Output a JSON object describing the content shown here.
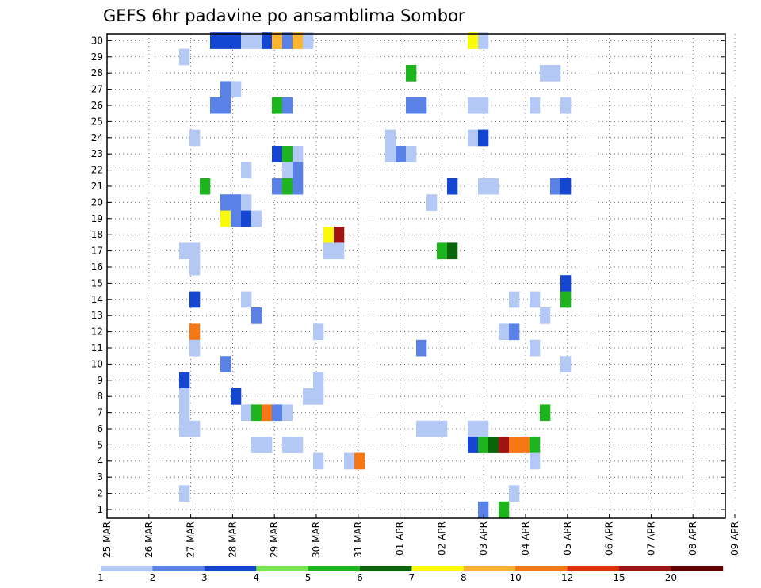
{
  "chart_data": {
    "type": "heatmap",
    "title": "GEFS 6hr padavine po ansamblima Sombor",
    "xlabel": "",
    "ylabel": "",
    "x_ticks": [
      "25 MAR",
      "26 MAR",
      "27 MAR",
      "28 MAR",
      "29 MAR",
      "30 MAR",
      "31 MAR",
      "01 APR",
      "02 APR",
      "03 APR",
      "04 APR",
      "05 APR",
      "06 APR",
      "07 APR",
      "08 APR",
      "09 APR"
    ],
    "y_ticks": [
      "1",
      "2",
      "3",
      "4",
      "5",
      "6",
      "7",
      "8",
      "9",
      "10",
      "11",
      "12",
      "13",
      "14",
      "15",
      "16",
      "17",
      "18",
      "19",
      "20",
      "21",
      "22",
      "23",
      "24",
      "25",
      "26",
      "27",
      "28",
      "29",
      "30"
    ],
    "ylim": [
      1,
      30
    ],
    "x_step_hours": 6,
    "grid": true,
    "colorbar": {
      "labels": [
        "1",
        "2",
        "3",
        "4",
        "5",
        "6",
        "7",
        "8",
        "10",
        "12",
        "15",
        "20"
      ],
      "colors": [
        "#b4c8f5",
        "#5a82e6",
        "#1446d2",
        "#78e650",
        "#1eb41e",
        "#0a640a",
        "#fafa0a",
        "#fab432",
        "#f57814",
        "#dc320a",
        "#a01414",
        "#640000"
      ]
    },
    "cells": [
      [
        10,
        30,
        3
      ],
      [
        11,
        30,
        3
      ],
      [
        12,
        30,
        3
      ],
      [
        13,
        30,
        1
      ],
      [
        14,
        30,
        1
      ],
      [
        15,
        30,
        3
      ],
      [
        16,
        30,
        8
      ],
      [
        17,
        30,
        2
      ],
      [
        18,
        30,
        8
      ],
      [
        19,
        30,
        1
      ],
      [
        35,
        30,
        7
      ],
      [
        36,
        30,
        1
      ],
      [
        7,
        29,
        1
      ],
      [
        29,
        28,
        5
      ],
      [
        42,
        28,
        1
      ],
      [
        43,
        28,
        1
      ],
      [
        11,
        27,
        2
      ],
      [
        12,
        27,
        1
      ],
      [
        10,
        26,
        2
      ],
      [
        11,
        26,
        2
      ],
      [
        16,
        26,
        5
      ],
      [
        17,
        26,
        2
      ],
      [
        29,
        26,
        2
      ],
      [
        30,
        26,
        2
      ],
      [
        35,
        26,
        1
      ],
      [
        36,
        26,
        1
      ],
      [
        41,
        26,
        1
      ],
      [
        44,
        26,
        1
      ],
      [
        8,
        24,
        1
      ],
      [
        27,
        24,
        1
      ],
      [
        35,
        24,
        1
      ],
      [
        36,
        24,
        3
      ],
      [
        16,
        23,
        3
      ],
      [
        17,
        23,
        5
      ],
      [
        18,
        23,
        1
      ],
      [
        27,
        23,
        1
      ],
      [
        28,
        23,
        2
      ],
      [
        29,
        23,
        1
      ],
      [
        13,
        22,
        1
      ],
      [
        17,
        22,
        1
      ],
      [
        18,
        22,
        2
      ],
      [
        9,
        21,
        5
      ],
      [
        16,
        21,
        2
      ],
      [
        17,
        21,
        5
      ],
      [
        18,
        21,
        2
      ],
      [
        33,
        21,
        3
      ],
      [
        36,
        21,
        1
      ],
      [
        37,
        21,
        1
      ],
      [
        43,
        21,
        2
      ],
      [
        44,
        21,
        3
      ],
      [
        11,
        20,
        2
      ],
      [
        12,
        20,
        2
      ],
      [
        13,
        20,
        1
      ],
      [
        31,
        20,
        1
      ],
      [
        11,
        19,
        7
      ],
      [
        12,
        19,
        2
      ],
      [
        13,
        19,
        3
      ],
      [
        14,
        19,
        1
      ],
      [
        21,
        18,
        7
      ],
      [
        22,
        18,
        11
      ],
      [
        7,
        17,
        1
      ],
      [
        8,
        17,
        1
      ],
      [
        21,
        17,
        1
      ],
      [
        22,
        17,
        1
      ],
      [
        32,
        17,
        5
      ],
      [
        33,
        17,
        6
      ],
      [
        8,
        16,
        1
      ],
      [
        44,
        15,
        3
      ],
      [
        8,
        14,
        3
      ],
      [
        13,
        14,
        1
      ],
      [
        39,
        14,
        1
      ],
      [
        41,
        14,
        1
      ],
      [
        44,
        14,
        5
      ],
      [
        14,
        13,
        2
      ],
      [
        42,
        13,
        1
      ],
      [
        8,
        12,
        9
      ],
      [
        20,
        12,
        1
      ],
      [
        38,
        12,
        1
      ],
      [
        39,
        12,
        2
      ],
      [
        8,
        11,
        1
      ],
      [
        30,
        11,
        2
      ],
      [
        41,
        11,
        1
      ],
      [
        11,
        10,
        2
      ],
      [
        44,
        10,
        1
      ],
      [
        7,
        9,
        3
      ],
      [
        20,
        9,
        1
      ],
      [
        7,
        8,
        1
      ],
      [
        12,
        8,
        3
      ],
      [
        19,
        8,
        1
      ],
      [
        20,
        8,
        1
      ],
      [
        7,
        7,
        1
      ],
      [
        13,
        7,
        1
      ],
      [
        14,
        7,
        5
      ],
      [
        15,
        7,
        9
      ],
      [
        16,
        7,
        2
      ],
      [
        17,
        7,
        1
      ],
      [
        42,
        7,
        5
      ],
      [
        7,
        6,
        1
      ],
      [
        8,
        6,
        1
      ],
      [
        30,
        6,
        1
      ],
      [
        31,
        6,
        1
      ],
      [
        32,
        6,
        1
      ],
      [
        35,
        6,
        1
      ],
      [
        36,
        6,
        1
      ],
      [
        14,
        5,
        1
      ],
      [
        15,
        5,
        1
      ],
      [
        17,
        5,
        1
      ],
      [
        18,
        5,
        1
      ],
      [
        35,
        5,
        3
      ],
      [
        36,
        5,
        5
      ],
      [
        37,
        5,
        6
      ],
      [
        38,
        5,
        11
      ],
      [
        39,
        5,
        9
      ],
      [
        40,
        5,
        9
      ],
      [
        41,
        5,
        5
      ],
      [
        20,
        4,
        1
      ],
      [
        23,
        4,
        1
      ],
      [
        24,
        4,
        9
      ],
      [
        41,
        4,
        1
      ],
      [
        7,
        2,
        1
      ],
      [
        39,
        2,
        1
      ],
      [
        36,
        1,
        2
      ],
      [
        38,
        1,
        5
      ]
    ]
  }
}
